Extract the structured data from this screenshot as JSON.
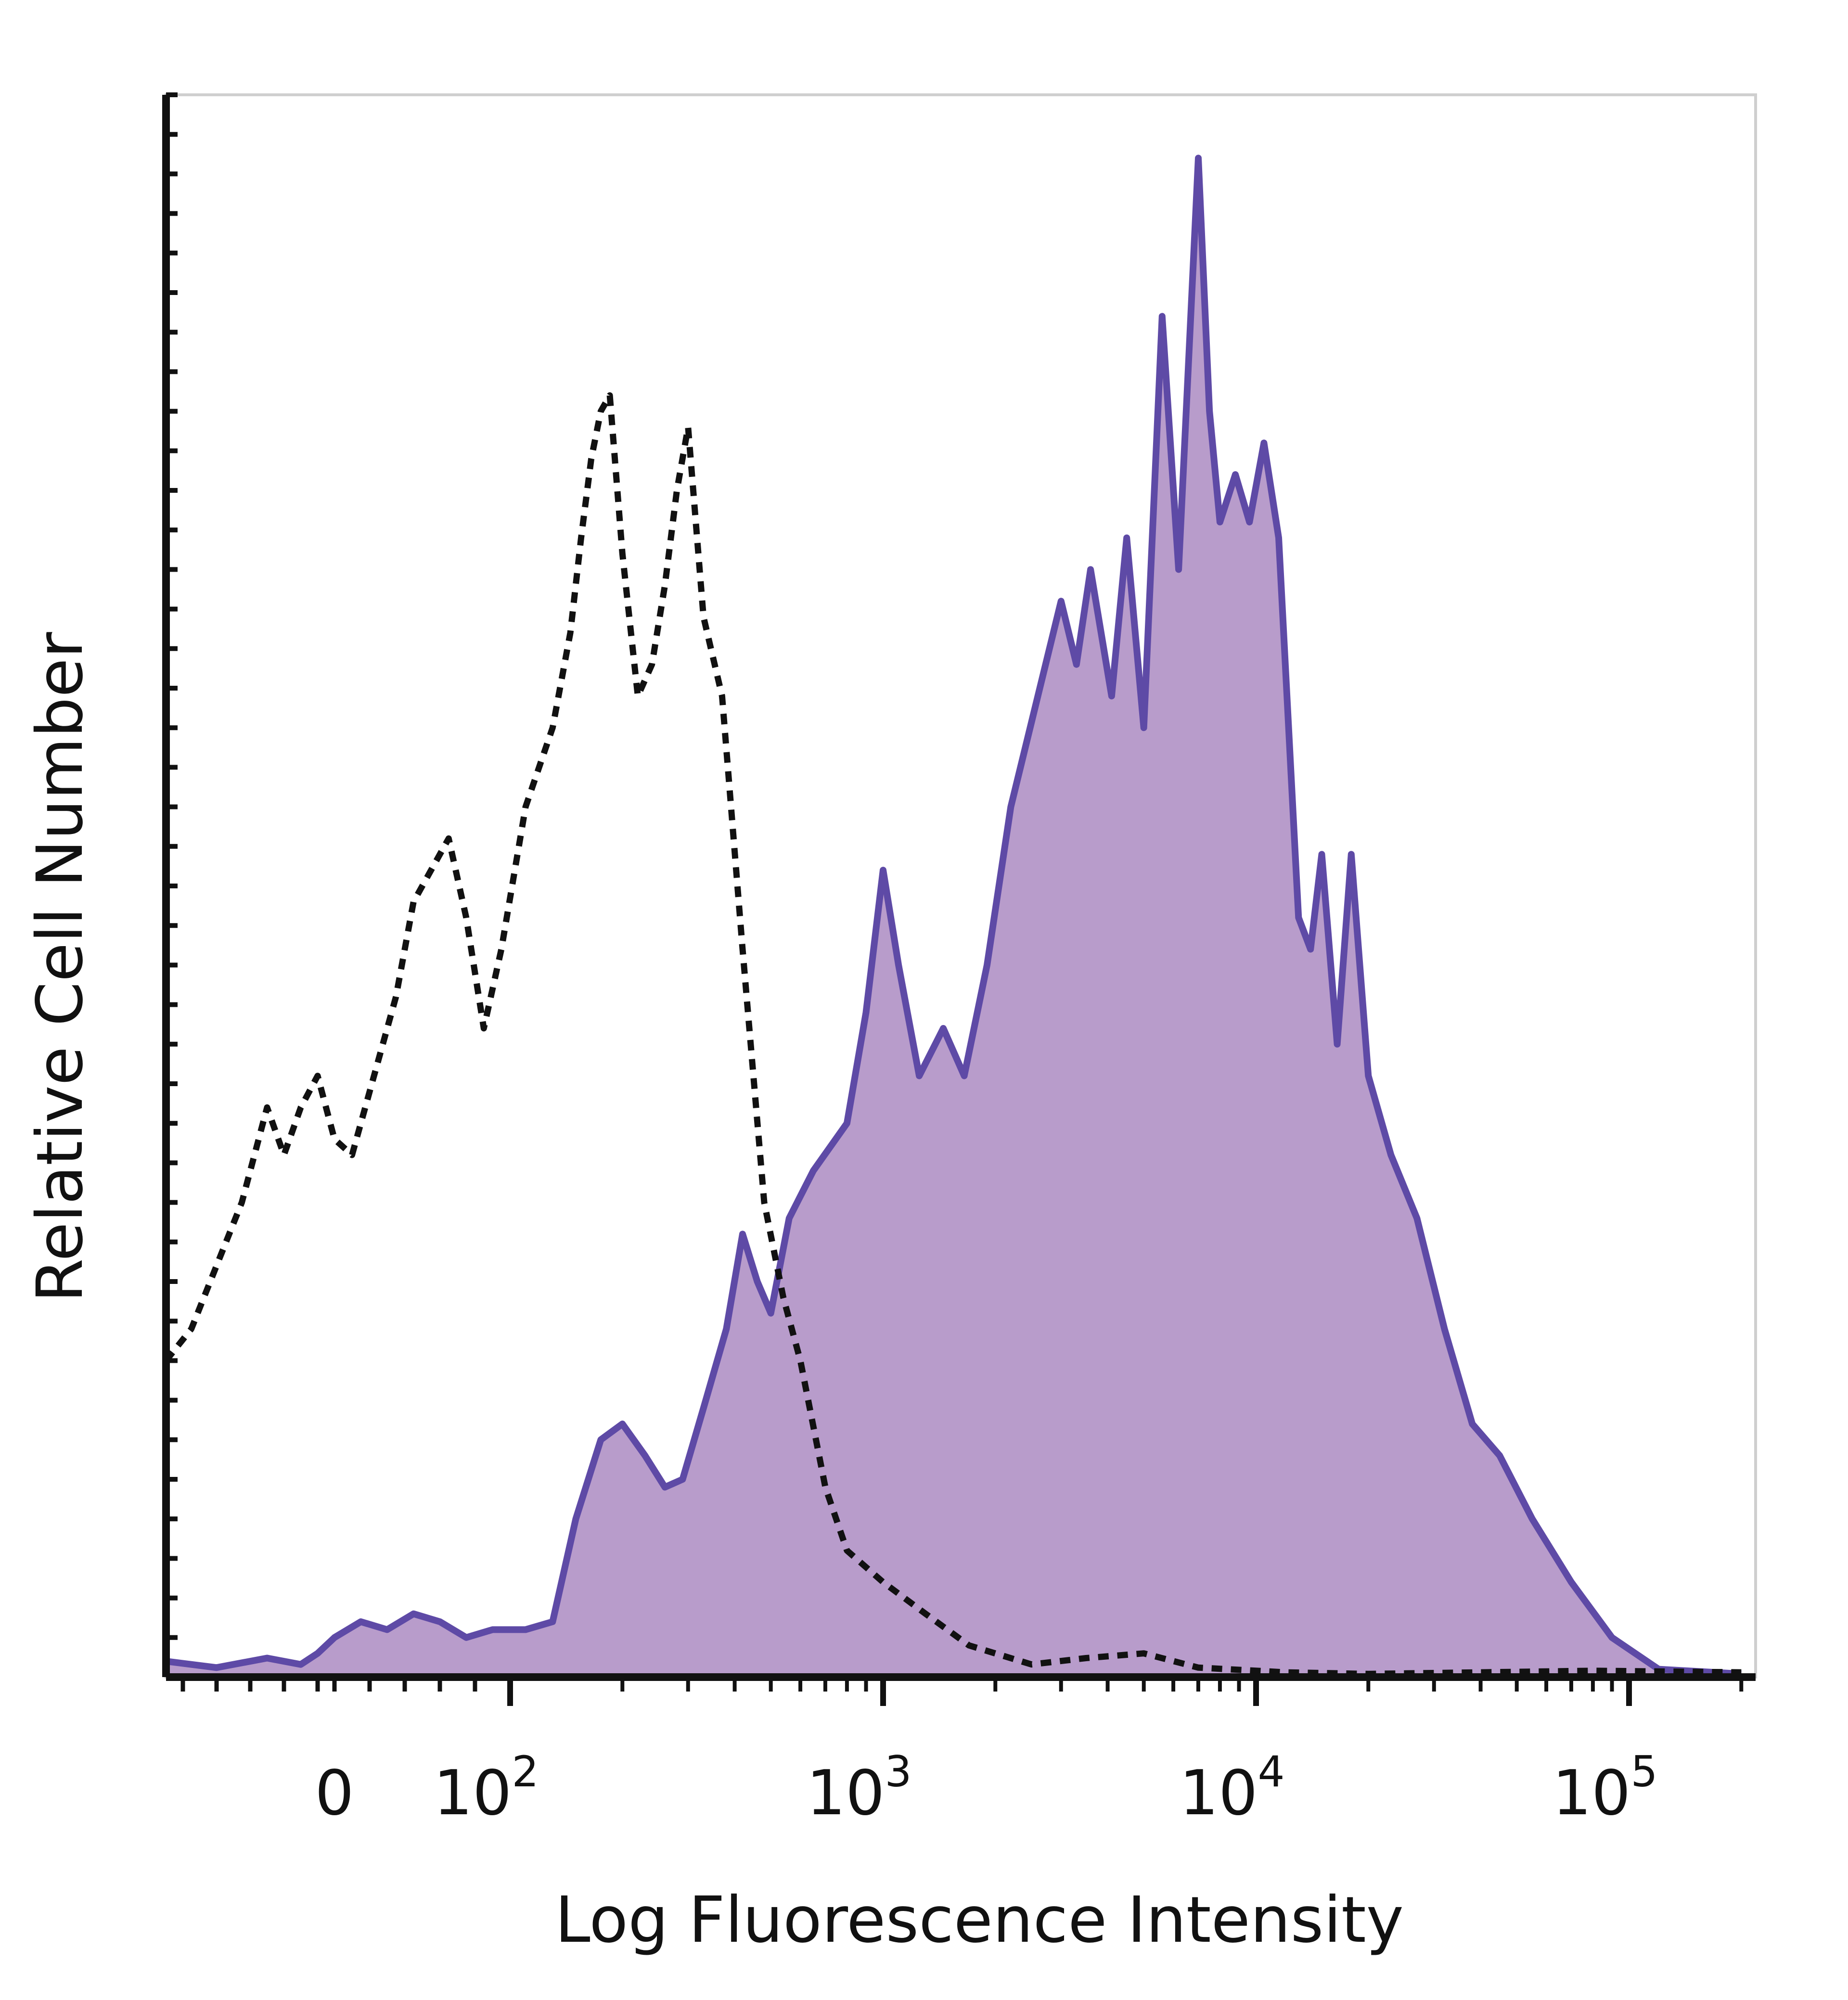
{
  "chart_data": {
    "type": "area",
    "title": "",
    "xlabel": "Log Fluorescence Intensity",
    "ylabel": "Relative Cell Number",
    "x_scale": "biexponential",
    "xlim": [
      -100,
      200000
    ],
    "ylim": [
      0,
      100
    ],
    "x_tick_labels": [
      {
        "value": 0,
        "base": "0",
        "exp": ""
      },
      {
        "value": 100,
        "base": "10",
        "exp": "2"
      },
      {
        "value": 1000,
        "base": "10",
        "exp": "3"
      },
      {
        "value": 10000,
        "base": "10",
        "exp": "4"
      },
      {
        "value": 100000,
        "base": "10",
        "exp": "5"
      }
    ],
    "grid": false,
    "legend": "none",
    "series": [
      {
        "style": "dashed-outline",
        "color": "#111111",
        "points": [
          [
            -100,
            20
          ],
          [
            -85,
            22
          ],
          [
            -70,
            26
          ],
          [
            -55,
            30
          ],
          [
            -45,
            34
          ],
          [
            -40,
            36
          ],
          [
            -30,
            33
          ],
          [
            -20,
            36
          ],
          [
            -10,
            38
          ],
          [
            0,
            34
          ],
          [
            10,
            33
          ],
          [
            25,
            39
          ],
          [
            35,
            43
          ],
          [
            45,
            49
          ],
          [
            55,
            51
          ],
          [
            65,
            53
          ],
          [
            75,
            48
          ],
          [
            85,
            41
          ],
          [
            95,
            46
          ],
          [
            110,
            55
          ],
          [
            130,
            60
          ],
          [
            145,
            66
          ],
          [
            155,
            72
          ],
          [
            165,
            77
          ],
          [
            175,
            80
          ],
          [
            185,
            81
          ],
          [
            200,
            71
          ],
          [
            220,
            62
          ],
          [
            240,
            64
          ],
          [
            260,
            69
          ],
          [
            280,
            75
          ],
          [
            300,
            79
          ],
          [
            330,
            67
          ],
          [
            370,
            62
          ],
          [
            420,
            46
          ],
          [
            480,
            30
          ],
          [
            540,
            24
          ],
          [
            600,
            20
          ],
          [
            700,
            12
          ],
          [
            800,
            8
          ],
          [
            1000,
            6
          ],
          [
            1300,
            4
          ],
          [
            1700,
            2
          ],
          [
            2500,
            0.8
          ],
          [
            3500,
            1.2
          ],
          [
            5000,
            1.5
          ],
          [
            7000,
            0.6
          ],
          [
            12000,
            0.3
          ],
          [
            20000,
            0.2
          ],
          [
            40000,
            0.3
          ],
          [
            80000,
            0.4
          ],
          [
            200000,
            0.3
          ]
        ]
      },
      {
        "style": "filled",
        "color": "#5e4aa6",
        "fill": "#b89ccb",
        "points": [
          [
            -100,
            1
          ],
          [
            -70,
            0.6
          ],
          [
            -40,
            1.2
          ],
          [
            -20,
            0.8
          ],
          [
            -10,
            1.5
          ],
          [
            0,
            2.5
          ],
          [
            15,
            3.5
          ],
          [
            30,
            3
          ],
          [
            45,
            4
          ],
          [
            60,
            3.5
          ],
          [
            75,
            2.5
          ],
          [
            90,
            3
          ],
          [
            110,
            3
          ],
          [
            130,
            3.5
          ],
          [
            150,
            10
          ],
          [
            175,
            15
          ],
          [
            200,
            16
          ],
          [
            230,
            14
          ],
          [
            260,
            12
          ],
          [
            290,
            12.5
          ],
          [
            330,
            17
          ],
          [
            380,
            22
          ],
          [
            420,
            28
          ],
          [
            460,
            25
          ],
          [
            500,
            23
          ],
          [
            560,
            29
          ],
          [
            650,
            32
          ],
          [
            800,
            35
          ],
          [
            900,
            42
          ],
          [
            1000,
            51
          ],
          [
            1100,
            45
          ],
          [
            1250,
            38
          ],
          [
            1450,
            41
          ],
          [
            1650,
            38
          ],
          [
            1900,
            45
          ],
          [
            2200,
            55
          ],
          [
            2600,
            62
          ],
          [
            3000,
            68
          ],
          [
            3300,
            64
          ],
          [
            3600,
            70
          ],
          [
            4100,
            62
          ],
          [
            4500,
            72
          ],
          [
            5000,
            60
          ],
          [
            5600,
            86
          ],
          [
            6200,
            70
          ],
          [
            7000,
            96
          ],
          [
            7500,
            80
          ],
          [
            8000,
            73
          ],
          [
            8800,
            76
          ],
          [
            9600,
            73
          ],
          [
            10500,
            78
          ],
          [
            11500,
            72
          ],
          [
            13000,
            48
          ],
          [
            14000,
            46
          ],
          [
            15000,
            52
          ],
          [
            16500,
            40
          ],
          [
            18000,
            52
          ],
          [
            20000,
            38
          ],
          [
            23000,
            33
          ],
          [
            27000,
            29
          ],
          [
            32000,
            22
          ],
          [
            38000,
            16
          ],
          [
            45000,
            14
          ],
          [
            55000,
            10
          ],
          [
            70000,
            6
          ],
          [
            90000,
            2.5
          ],
          [
            120000,
            0.5
          ],
          [
            200000,
            0.2
          ]
        ]
      }
    ]
  }
}
